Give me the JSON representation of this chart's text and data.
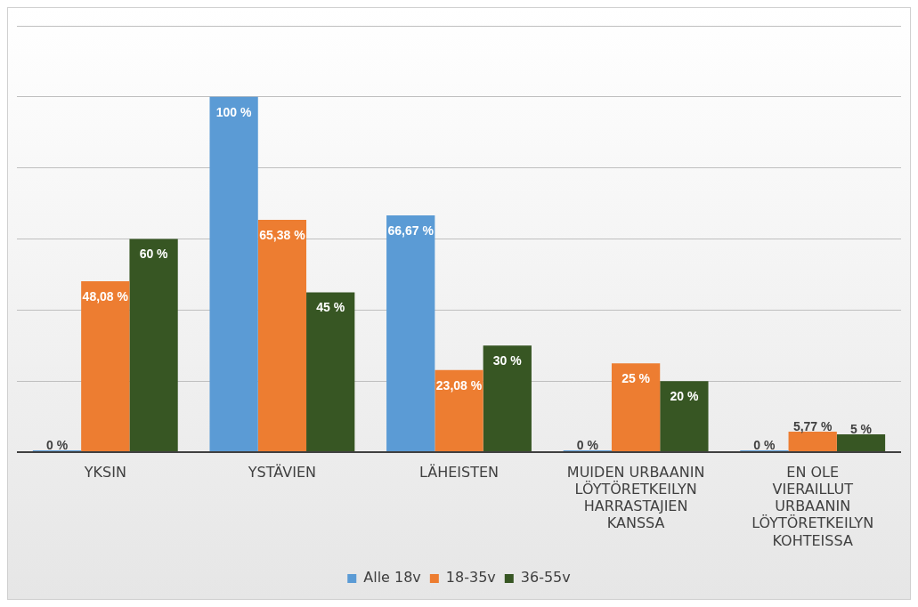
{
  "chart_data": {
    "type": "bar",
    "categories": [
      "YKSIN",
      "YSTÄVIEN",
      "LÄHEISTEN",
      "MUIDEN URBAANIN LÖYTÖRETKEILYN HARRASTAJIEN KANSSA",
      "EN OLE VIERAILLUT URBAANIN LÖYTÖRETKEILYN KOHTEISSA"
    ],
    "series": [
      {
        "name": "Alle 18v",
        "color": "#5b9bd5",
        "values": [
          0,
          100,
          66.67,
          0,
          0
        ],
        "value_labels": [
          "0 %",
          "100 %",
          "66,67 %",
          "0 %",
          "0 %"
        ]
      },
      {
        "name": "18-35v",
        "color": "#ed7d31",
        "values": [
          48.08,
          65.38,
          23.08,
          25,
          5.77
        ],
        "value_labels": [
          "48,08 %",
          "65,38 %",
          "23,08 %",
          "25 %",
          "5,77 %"
        ]
      },
      {
        "name": "36-55v",
        "color": "#375623",
        "values": [
          60,
          45,
          30,
          20,
          5
        ],
        "value_labels": [
          "60 %",
          "45 %",
          "30 %",
          "20 %",
          "5 %"
        ]
      }
    ],
    "ylim": [
      0,
      120
    ],
    "yticks": [
      {
        "value": 0,
        "label": null
      },
      {
        "value": 20,
        "label": null
      },
      {
        "value": 40,
        "label": null
      },
      {
        "value": 60,
        "label": null
      },
      {
        "value": 80,
        "label": null
      },
      {
        "value": 100,
        "label": null
      },
      {
        "value": 120,
        "label": null
      }
    ],
    "tick_labels": "x",
    "grid": "y",
    "legend": "bottom"
  }
}
